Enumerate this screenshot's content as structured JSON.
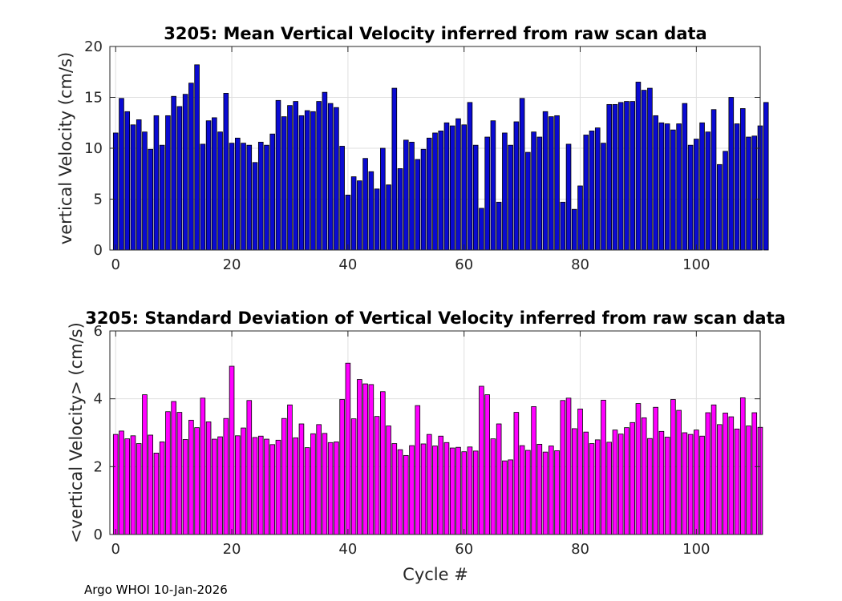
{
  "footer": "Argo WHOI 10-Jan-2026",
  "chart_data": [
    {
      "type": "bar",
      "title": "3205: Mean Vertical Velocity inferred from raw scan data",
      "xlabel": "",
      "ylabel": "vertical Velocity (cm/s)",
      "xlim": [
        -1,
        111
      ],
      "ylim": [
        0,
        20
      ],
      "xticks": [
        0,
        20,
        40,
        60,
        80,
        100
      ],
      "yticks": [
        0,
        5,
        10,
        15,
        20
      ],
      "grid": true,
      "color": "#0a0ad2",
      "x_start": 0,
      "values": [
        11.5,
        14.9,
        13.6,
        12.3,
        12.8,
        11.6,
        9.9,
        13.2,
        10.3,
        13.2,
        15.1,
        14.1,
        15.3,
        16.4,
        18.2,
        10.4,
        12.7,
        13.0,
        11.6,
        15.4,
        10.5,
        11.0,
        10.5,
        10.3,
        8.6,
        10.6,
        10.3,
        11.4,
        14.7,
        13.1,
        14.2,
        14.6,
        13.2,
        13.7,
        13.6,
        14.6,
        15.5,
        14.4,
        14.0,
        10.2,
        5.4,
        7.2,
        6.8,
        9.0,
        7.7,
        6.0,
        10.0,
        6.4,
        15.9,
        8.0,
        10.8,
        10.6,
        8.9,
        9.9,
        11.0,
        11.5,
        11.7,
        12.5,
        12.2,
        12.9,
        12.3,
        14.5,
        10.3,
        4.1,
        11.1,
        12.7,
        4.7,
        11.5,
        10.3,
        12.6,
        14.9,
        9.6,
        11.6,
        11.1,
        13.6,
        13.1,
        13.2,
        4.7,
        10.4,
        4.0,
        6.3,
        11.3,
        11.7,
        12.0,
        10.5,
        14.3,
        14.3,
        14.5,
        14.6,
        14.6,
        16.5,
        15.7,
        15.9,
        13.2,
        12.5,
        12.4,
        11.8,
        12.4,
        14.4,
        10.3,
        10.9,
        12.5,
        11.6,
        13.8,
        8.4,
        9.7,
        15.0,
        12.4,
        13.9,
        11.1,
        11.2,
        12.2,
        14.5
      ]
    },
    {
      "type": "bar",
      "title": "3205: Standard Deviation of Vertical Velocity inferred from raw scan data",
      "xlabel": "Cycle #",
      "ylabel": "<vertical Velocity> (cm/s)",
      "xlim": [
        -1,
        111
      ],
      "ylim": [
        0,
        6
      ],
      "xticks": [
        0,
        20,
        40,
        60,
        80,
        100
      ],
      "yticks": [
        0,
        2,
        4,
        6
      ],
      "grid": true,
      "color": "#ff00ff",
      "x_start": 0,
      "values": [
        2.95,
        3.05,
        2.82,
        2.91,
        2.68,
        4.12,
        2.93,
        2.4,
        2.73,
        3.62,
        3.92,
        3.6,
        2.8,
        3.37,
        3.15,
        4.02,
        3.32,
        2.81,
        2.88,
        3.42,
        4.96,
        2.91,
        3.14,
        3.95,
        2.86,
        2.9,
        2.81,
        2.65,
        2.78,
        3.42,
        3.82,
        2.85,
        3.26,
        2.56,
        2.97,
        3.24,
        2.98,
        2.71,
        2.73,
        3.98,
        5.05,
        3.41,
        4.57,
        4.44,
        4.42,
        3.48,
        4.21,
        3.2,
        2.68,
        2.5,
        2.33,
        2.62,
        3.8,
        2.67,
        2.95,
        2.61,
        2.9,
        2.71,
        2.55,
        2.57,
        2.44,
        2.58,
        2.46,
        4.37,
        4.12,
        2.82,
        3.26,
        2.17,
        2.2,
        3.6,
        2.62,
        2.48,
        3.77,
        2.66,
        2.43,
        2.61,
        2.47,
        3.95,
        4.02,
        3.12,
        3.7,
        3.02,
        2.68,
        2.79,
        3.96,
        2.72,
        3.08,
        2.96,
        3.15,
        3.3,
        3.86,
        3.44,
        2.83,
        3.75,
        3.04,
        2.87,
        3.98,
        3.66,
        3.0,
        2.95,
        3.08,
        2.9,
        3.59,
        3.82,
        3.24,
        3.58,
        3.47,
        3.11,
        4.03,
        3.2,
        3.59,
        3.16
      ]
    }
  ]
}
